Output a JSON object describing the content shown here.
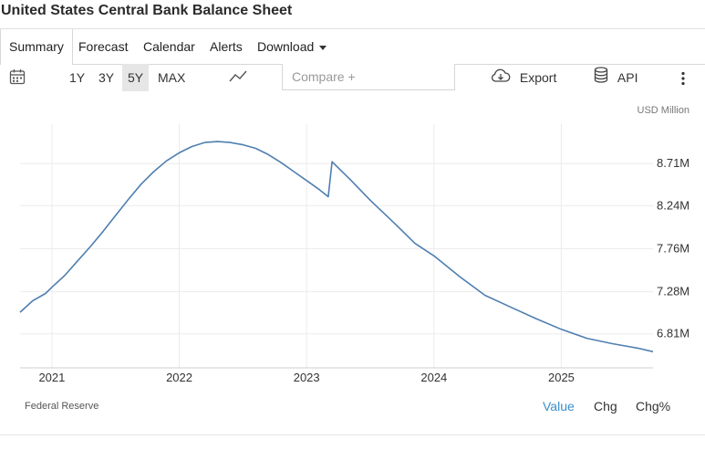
{
  "page": {
    "title": "United States Central Bank Balance Sheet"
  },
  "tabs": [
    {
      "label": "Summary",
      "active": true
    },
    {
      "label": "Forecast"
    },
    {
      "label": "Calendar"
    },
    {
      "label": "Alerts"
    },
    {
      "label": "Download",
      "dropdown": true
    }
  ],
  "toolbar": {
    "calendar_icon": "calendar-icon",
    "ranges": [
      {
        "label": "1Y"
      },
      {
        "label": "3Y"
      },
      {
        "label": "5Y",
        "active": true
      },
      {
        "label": "MAX"
      }
    ],
    "chart_type_icon": "line-chart-icon",
    "compare_placeholder": "Compare +",
    "export_label": "Export",
    "export_icon": "cloud-download-icon",
    "api_label": "API",
    "api_icon": "database-icon",
    "more_icon": "more-vertical-icon"
  },
  "chart_data": {
    "type": "line",
    "unit_label": "USD Million",
    "line_color": "#4f7fb0",
    "grid": true,
    "x_ticks": [
      "2021",
      "2022",
      "2023",
      "2024",
      "2025"
    ],
    "y_ticks": [
      {
        "value": 6810000,
        "label": "6.81M"
      },
      {
        "value": 7280000,
        "label": "7.28M"
      },
      {
        "value": 7760000,
        "label": "7.76M"
      },
      {
        "value": 8240000,
        "label": "8.24M"
      },
      {
        "value": 8710000,
        "label": "8.71M"
      }
    ],
    "xlim": [
      2020.75,
      2025.72
    ],
    "ylim": [
      6430000,
      9150000
    ],
    "series": [
      {
        "points": [
          [
            2020.75,
            7050000
          ],
          [
            2020.85,
            7180000
          ],
          [
            2020.95,
            7260000
          ],
          [
            2021.0,
            7330000
          ],
          [
            2021.1,
            7460000
          ],
          [
            2021.2,
            7620000
          ],
          [
            2021.3,
            7780000
          ],
          [
            2021.4,
            7950000
          ],
          [
            2021.5,
            8130000
          ],
          [
            2021.6,
            8310000
          ],
          [
            2021.7,
            8480000
          ],
          [
            2021.8,
            8620000
          ],
          [
            2021.9,
            8740000
          ],
          [
            2022.0,
            8830000
          ],
          [
            2022.1,
            8900000
          ],
          [
            2022.2,
            8945000
          ],
          [
            2022.3,
            8955000
          ],
          [
            2022.4,
            8945000
          ],
          [
            2022.5,
            8920000
          ],
          [
            2022.6,
            8880000
          ],
          [
            2022.7,
            8810000
          ],
          [
            2022.8,
            8720000
          ],
          [
            2022.9,
            8620000
          ],
          [
            2023.0,
            8520000
          ],
          [
            2023.1,
            8420000
          ],
          [
            2023.17,
            8340000
          ],
          [
            2023.2,
            8730000
          ],
          [
            2023.25,
            8660000
          ],
          [
            2023.35,
            8520000
          ],
          [
            2023.5,
            8300000
          ],
          [
            2023.7,
            8030000
          ],
          [
            2023.85,
            7820000
          ],
          [
            2024.0,
            7680000
          ],
          [
            2024.2,
            7450000
          ],
          [
            2024.4,
            7240000
          ],
          [
            2024.6,
            7110000
          ],
          [
            2024.8,
            6980000
          ],
          [
            2025.0,
            6860000
          ],
          [
            2025.2,
            6760000
          ],
          [
            2025.4,
            6700000
          ],
          [
            2025.6,
            6650000
          ],
          [
            2025.72,
            6610000
          ]
        ]
      }
    ]
  },
  "footer": {
    "source": "Federal Reserve",
    "value_tabs": [
      {
        "label": "Value",
        "active": true
      },
      {
        "label": "Chg"
      },
      {
        "label": "Chg%"
      }
    ]
  }
}
